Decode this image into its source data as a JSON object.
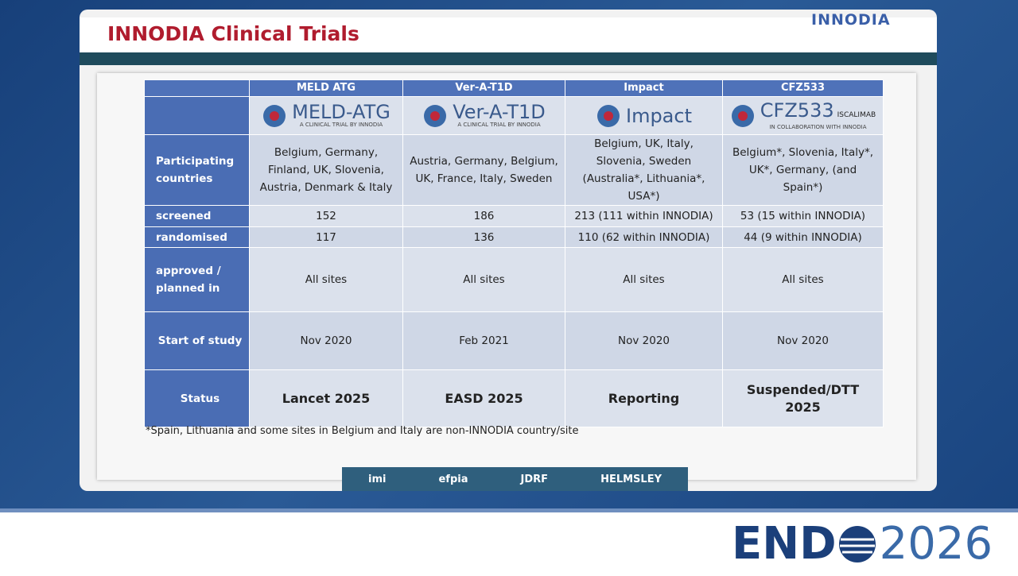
{
  "header": {
    "title": "INNODIA Clinical Trials",
    "logo": "INNODIA"
  },
  "table": {
    "columns": [
      "MELD ATG",
      "Ver-A-T1D",
      "Impact",
      "CFZ533"
    ],
    "logos": [
      {
        "name": "MELD-ATG",
        "tagline": "A CLINICAL TRIAL BY INNODIA"
      },
      {
        "name": "Ver-A-T1D",
        "tagline": "A CLINICAL TRIAL BY INNODIA"
      },
      {
        "name": "Impact"
      },
      {
        "name": "CFZ533",
        "sub": "ISCALIMAB",
        "tagline": "IN COLLABORATION WITH INNODIA"
      }
    ],
    "rows": [
      {
        "label": "Participating countries",
        "cells": [
          "Belgium, Germany, Finland, UK, Slovenia, Austria, Denmark & Italy",
          "Austria, Germany, Belgium, UK, France, Italy, Sweden",
          "Belgium, UK, Italy, Slovenia, Sweden (Australia*, Lithuania*, USA*)",
          "Belgium*, Slovenia, Italy*, UK*, Germany, (and Spain*)"
        ]
      },
      {
        "label": "screened",
        "cells": [
          "152",
          "186",
          "213 (111 within INNODIA)",
          "53 (15 within INNODIA)"
        ]
      },
      {
        "label": "randomised",
        "cells": [
          "117",
          "136",
          "110 (62 within INNODIA)",
          "44 (9 within INNODIA)"
        ]
      },
      {
        "label": "approved / planned in",
        "cells": [
          "All sites",
          "All sites",
          "All sites",
          "All sites"
        ]
      },
      {
        "label": "Start of study",
        "cells": [
          "Nov 2020",
          "Feb 2021",
          "Nov 2020",
          "Nov 2020"
        ]
      },
      {
        "label": "Status",
        "cells": [
          "Lancet 2025",
          "EASD 2025",
          "Reporting",
          "Suspended/DTT 2025"
        ]
      }
    ]
  },
  "footnote": "*Spain, Lithuania and some sites in Belgium and Italy are non-INNODIA country/site",
  "sponsors": [
    "imi",
    "efpia",
    "JDRF",
    "HELMSLEY"
  ],
  "event": {
    "name": "END",
    "year": "2026"
  }
}
